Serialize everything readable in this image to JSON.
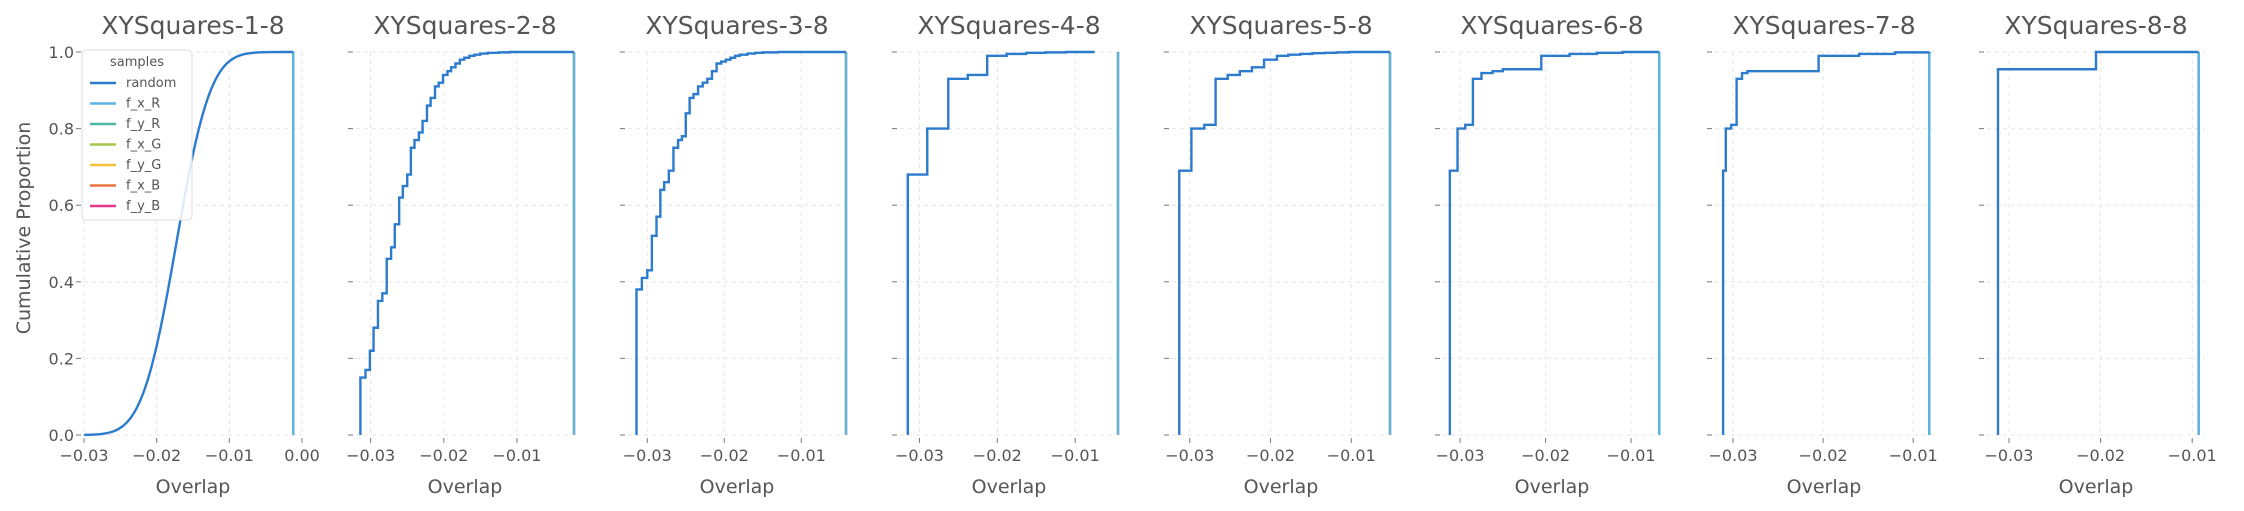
{
  "chart_data": {
    "type": "line",
    "ylabel": "Cumulative Proportion",
    "yticks": [
      0.0,
      0.2,
      0.4,
      0.6,
      0.8,
      1.0
    ],
    "ylim": [
      0,
      1
    ],
    "grid": true,
    "legend": {
      "title": "samples",
      "placement": "upper-left of first panel",
      "entries": [
        "random",
        "f_x_R",
        "f_y_R",
        "f_x_G",
        "f_y_G",
        "f_x_B",
        "f_y_B"
      ],
      "colors": [
        "#2c7bcd",
        "#5ab4e5",
        "#4cb8a0",
        "#a6c84a",
        "#f2c03a",
        "#e8743b",
        "#e8388a"
      ]
    },
    "panels": [
      {
        "title": "XYSquares-1-8",
        "xlabel": "Overlap",
        "xlim": [
          -0.03,
          0.0
        ],
        "xticks": [
          -0.03,
          -0.02,
          -0.01,
          0.0
        ],
        "xtick_labels": [
          "−0.03",
          "−0.02",
          "−0.01",
          "0.00"
        ],
        "random_mode": "normal",
        "random_mean": -0.0173,
        "random_sd": 0.0037,
        "random_min": -0.03,
        "random_max": -0.0012,
        "steps_x": [],
        "steps_y": [],
        "factor_x": -0.0012
      },
      {
        "title": "XYSquares-2-8",
        "xlabel": "Overlap",
        "xlim": [
          -0.032,
          -0.0022
        ],
        "xticks": [
          -0.03,
          -0.02,
          -0.01
        ],
        "xtick_labels": [
          "−0.03",
          "−0.02",
          "−0.01"
        ],
        "random_mode": "steps",
        "steps_x": [
          -0.0314,
          -0.0307,
          -0.0301,
          -0.0296,
          -0.029,
          -0.0284,
          -0.0278,
          -0.0272,
          -0.0267,
          -0.0261,
          -0.0256,
          -0.025,
          -0.0245,
          -0.024,
          -0.0234,
          -0.0229,
          -0.0223,
          -0.0218,
          -0.0212,
          -0.0207,
          -0.0201,
          -0.0195,
          -0.019,
          -0.0184,
          -0.0178,
          -0.0172,
          -0.0165,
          -0.0158,
          -0.015,
          -0.014,
          -0.0125,
          -0.011,
          -0.009,
          -0.0022
        ],
        "steps_y": [
          0.15,
          0.17,
          0.22,
          0.28,
          0.35,
          0.37,
          0.46,
          0.49,
          0.55,
          0.62,
          0.65,
          0.68,
          0.75,
          0.77,
          0.79,
          0.82,
          0.86,
          0.88,
          0.91,
          0.92,
          0.94,
          0.95,
          0.96,
          0.97,
          0.98,
          0.985,
          0.99,
          0.993,
          0.996,
          0.998,
          0.999,
          1.0,
          1.0,
          1.0
        ],
        "factor_x": -0.0022
      },
      {
        "title": "XYSquares-3-8",
        "xlabel": "Overlap",
        "xlim": [
          -0.0325,
          -0.0042
        ],
        "xticks": [
          -0.03,
          -0.02,
          -0.01
        ],
        "xtick_labels": [
          "−0.03",
          "−0.02",
          "−0.01"
        ],
        "random_mode": "steps",
        "steps_x": [
          -0.0314,
          -0.0307,
          -0.03,
          -0.0294,
          -0.0288,
          -0.0283,
          -0.0278,
          -0.0272,
          -0.0266,
          -0.026,
          -0.0255,
          -0.025,
          -0.0245,
          -0.024,
          -0.0234,
          -0.0228,
          -0.0222,
          -0.0216,
          -0.021,
          -0.0204,
          -0.0198,
          -0.0192,
          -0.0186,
          -0.018,
          -0.017,
          -0.016,
          -0.015,
          -0.013,
          -0.011,
          -0.0042
        ],
        "steps_y": [
          0.38,
          0.41,
          0.43,
          0.52,
          0.57,
          0.64,
          0.66,
          0.69,
          0.75,
          0.77,
          0.78,
          0.84,
          0.88,
          0.89,
          0.91,
          0.92,
          0.93,
          0.95,
          0.97,
          0.975,
          0.98,
          0.985,
          0.99,
          0.993,
          0.996,
          0.998,
          0.999,
          1.0,
          1.0,
          1.0
        ],
        "factor_x": -0.0042
      },
      {
        "title": "XYSquares-4-8",
        "xlabel": "Overlap",
        "xlim": [
          -0.0325,
          -0.0045
        ],
        "xticks": [
          -0.03,
          -0.02,
          -0.01
        ],
        "xtick_labels": [
          "−0.03",
          "−0.02",
          "−0.01"
        ],
        "random_mode": "steps",
        "steps_x": [
          -0.0315,
          -0.029,
          -0.0263,
          -0.0238,
          -0.0213,
          -0.0188,
          -0.0163,
          -0.0138,
          -0.0112,
          -0.0075
        ],
        "steps_y": [
          0.68,
          0.8,
          0.93,
          0.94,
          0.99,
          0.995,
          0.998,
          0.999,
          1.0,
          1.0
        ],
        "factor_x": -0.0045
      },
      {
        "title": "XYSquares-5-8",
        "xlabel": "Overlap",
        "xlim": [
          -0.0322,
          -0.0052
        ],
        "xticks": [
          -0.03,
          -0.02,
          -0.01
        ],
        "xtick_labels": [
          "−0.03",
          "−0.02",
          "−0.01"
        ],
        "random_mode": "steps",
        "steps_x": [
          -0.0313,
          -0.0298,
          -0.0282,
          -0.0268,
          -0.0253,
          -0.0238,
          -0.0223,
          -0.0208,
          -0.0192,
          -0.0178,
          -0.0163,
          -0.0148,
          -0.0133,
          -0.0118,
          -0.0103,
          -0.0088,
          -0.0073,
          -0.0052
        ],
        "steps_y": [
          0.69,
          0.8,
          0.81,
          0.93,
          0.94,
          0.95,
          0.96,
          0.98,
          0.99,
          0.993,
          0.995,
          0.997,
          0.998,
          0.999,
          1.0,
          1.0,
          1.0,
          1.0
        ],
        "factor_x": -0.0052
      },
      {
        "title": "XYSquares-6-8",
        "xlabel": "Overlap",
        "xlim": [
          -0.032,
          -0.0065
        ],
        "xticks": [
          -0.03,
          -0.02,
          -0.01
        ],
        "xtick_labels": [
          "−0.03",
          "−0.02",
          "−0.01"
        ],
        "random_mode": "steps",
        "steps_x": [
          -0.0312,
          -0.0303,
          -0.0294,
          -0.0285,
          -0.0275,
          -0.0262,
          -0.025,
          -0.0238,
          -0.0205,
          -0.0172,
          -0.014,
          -0.011,
          -0.0067
        ],
        "steps_y": [
          0.69,
          0.8,
          0.81,
          0.93,
          0.945,
          0.95,
          0.955,
          0.955,
          0.99,
          0.995,
          0.998,
          1.0,
          1.0
        ],
        "factor_x": -0.0067
      },
      {
        "title": "XYSquares-7-8",
        "xlabel": "Overlap",
        "xlim": [
          -0.032,
          -0.0078
        ],
        "xticks": [
          -0.03,
          -0.02,
          -0.01
        ],
        "xtick_labels": [
          "−0.03",
          "−0.02",
          "−0.01"
        ],
        "random_mode": "steps",
        "steps_x": [
          -0.0311,
          -0.0308,
          -0.0302,
          -0.0296,
          -0.029,
          -0.0284,
          -0.025,
          -0.0205,
          -0.016,
          -0.012,
          -0.0082
        ],
        "steps_y": [
          0.69,
          0.8,
          0.81,
          0.93,
          0.945,
          0.95,
          0.95,
          0.99,
          0.995,
          0.999,
          1.0
        ],
        "factor_x": -0.0082
      },
      {
        "title": "XYSquares-8-8",
        "xlabel": "Overlap",
        "xlim": [
          -0.0324,
          -0.0086
        ],
        "xticks": [
          -0.03,
          -0.02,
          -0.01
        ],
        "xtick_labels": [
          "−0.03",
          "−0.02",
          "−0.01"
        ],
        "random_mode": "steps",
        "steps_x": [
          -0.0312,
          -0.0205,
          -0.0093
        ],
        "steps_y": [
          0.955,
          1.0,
          1.0
        ],
        "factor_x": -0.0093
      }
    ]
  }
}
